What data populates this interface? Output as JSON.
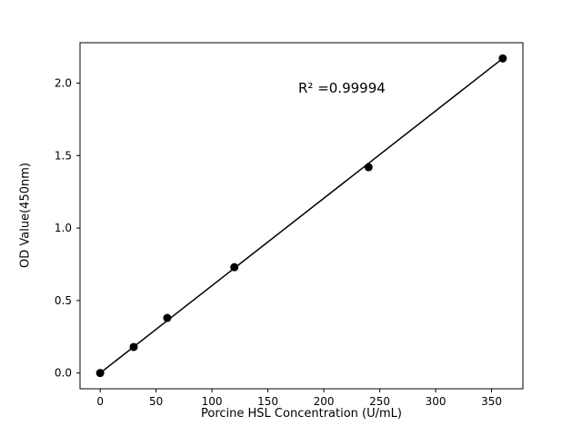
{
  "chart_data": {
    "type": "scatter",
    "title": "",
    "xlabel": "Porcine HSL Concentration (U/mL)",
    "ylabel": "OD Value(450nm)",
    "annotation": "R² =0.99994",
    "x": [
      0,
      30,
      60,
      120,
      240,
      360
    ],
    "y": [
      0.0,
      0.18,
      0.38,
      0.73,
      1.42,
      2.17
    ],
    "fit_line": {
      "x": [
        0,
        360
      ],
      "y": [
        0.0,
        2.17
      ]
    },
    "xlim": [
      -18,
      378
    ],
    "ylim": [
      -0.1085,
      2.2785
    ],
    "xticks": [
      0,
      50,
      100,
      150,
      200,
      250,
      300,
      350
    ],
    "xtick_labels": [
      "0",
      "50",
      "100",
      "150",
      "200",
      "250",
      "300",
      "350"
    ],
    "yticks": [
      0.0,
      0.5,
      1.0,
      1.5,
      2.0
    ],
    "ytick_labels": [
      "0.0",
      "0.5",
      "1.0",
      "1.5",
      "2.0"
    ],
    "legend": null,
    "grid": false,
    "marker_color": "#000000",
    "line_color": "#000000",
    "background_color": "#ffffff"
  }
}
